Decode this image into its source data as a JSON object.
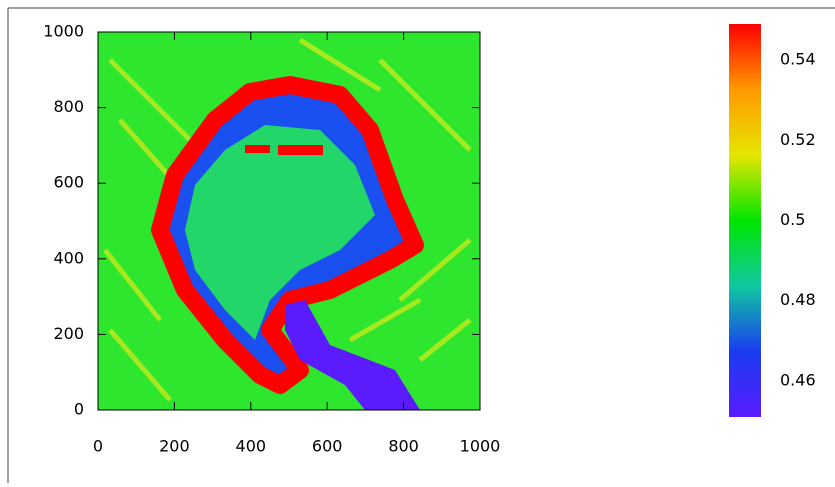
{
  "chart_data": {
    "type": "heatmap",
    "xlim": [
      0,
      1000
    ],
    "xticks": [
      0,
      200,
      400,
      600,
      800,
      1000
    ],
    "ylim": [
      0,
      1000
    ],
    "yticks": [
      0,
      200,
      400,
      600,
      800,
      1000
    ],
    "colorbar": {
      "clim": [
        0.451,
        0.549
      ],
      "ticks": [
        0.46,
        0.48,
        0.5,
        0.52,
        0.54
      ],
      "colors": [
        "#5a1cff",
        "#1a3cf0",
        "#10c8a0",
        "#00e600",
        "#e6e600",
        "#ff9900",
        "#ff0000"
      ]
    }
  }
}
